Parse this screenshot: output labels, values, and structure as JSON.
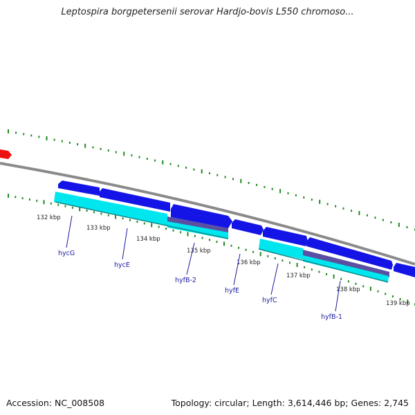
{
  "title": "Leptospira borgpetersenii serovar Hardjo-bovis L550 chromoso...",
  "footer": {
    "accession": "Accession: NC_008508",
    "summary": "Topology: circular; Length: 3,614,446 bp; Genes: 2,745"
  },
  "ticks": [
    "132 kbp",
    "133 kbp",
    "134 kbp",
    "135 kbp",
    "136 kbp",
    "137 kbp",
    "138 kbp",
    "139 kbp"
  ],
  "genes": [
    "hycG",
    "hycE",
    "hyfB-2",
    "hyfE",
    "hyfC",
    "hyfB-1"
  ],
  "colors": {
    "backbone": "#8a8a8a",
    "cds": "#1414e6",
    "gene": "#00e6ee",
    "cds_alt": "#5a4fa0",
    "ticks": "#1f8a1f",
    "arrow_red": "#ee1111",
    "label": "#1a1aa0"
  }
}
